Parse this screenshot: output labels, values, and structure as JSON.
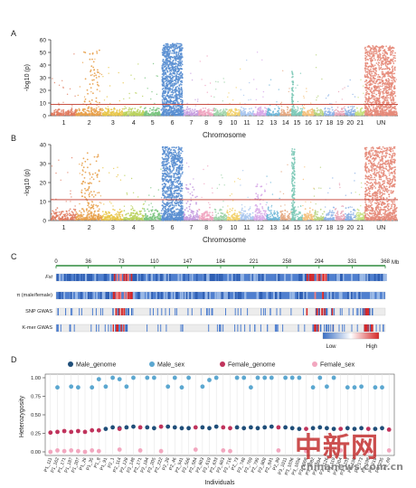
{
  "panels": {
    "A": {
      "letter": "A",
      "ylabel": "-log10 (p)",
      "xlabel": "Chromosome",
      "yticks": [
        0,
        10,
        20,
        30,
        40,
        50,
        60
      ],
      "threshold": 9
    },
    "B": {
      "letter": "B",
      "ylabel": "-log10 (p)",
      "xlabel": "Chromosome",
      "yticks": [
        0,
        10,
        20,
        30,
        40
      ],
      "threshold": 11
    },
    "C": {
      "letter": "C",
      "axis_ticks": [
        "0",
        "36",
        "73",
        "110",
        "147",
        "184",
        "221",
        "258",
        "294",
        "331",
        "368"
      ],
      "axis_unit": "Mb",
      "tracks": [
        "Fst",
        "π (male/female)",
        "SNP GWAS",
        "K-mer GWAS"
      ],
      "legend_low": "Low",
      "legend_high": "High"
    },
    "D": {
      "letter": "D",
      "ylabel": "Heterozygosity",
      "xlabel": "Individuals",
      "yticks": [
        "0.00",
        "0.25",
        "0.50",
        "0.75",
        "1.00"
      ]
    }
  },
  "chromosomes": [
    "1",
    "2",
    "3",
    "4",
    "5",
    "6",
    "7",
    "8",
    "9",
    "10",
    "11",
    "12",
    "13",
    "14",
    "15",
    "16",
    "17",
    "18",
    "19",
    "20",
    "21",
    "UN"
  ],
  "chrom_colors": [
    "#e07a5f",
    "#e8a04a",
    "#e8c547",
    "#b8d15a",
    "#7ac47f",
    "#5a8fd1",
    "#c79fe0",
    "#f0a3c0",
    "#9dd3a8",
    "#f2d16b",
    "#a9c7ee",
    "#d7a8e8",
    "#6fb7d8",
    "#e5a982",
    "#7dc9b7",
    "#f5c07a",
    "#b7d27c",
    "#8fb4e8",
    "#e8a3b6",
    "#88aee3",
    "#c5e07e",
    "#e58b7a"
  ],
  "legend": [
    {
      "label": "Male_genome",
      "color": "#1f4e79"
    },
    {
      "label": "Male_sex",
      "color": "#5ba7d0"
    },
    {
      "label": "Female_genome",
      "color": "#c0335c"
    },
    {
      "label": "Female_sex",
      "color": "#f2a7bf"
    }
  ],
  "chart_data": {
    "type": "scatter",
    "ylabel": "Heterozygosity",
    "xlabel": "Individuals",
    "ylim": [
      0,
      1
    ],
    "categories": [
      "P1_111",
      "P1_162",
      "P1_171",
      "P1_187",
      "P1_207",
      "P1_26",
      "P1_35",
      "P1_8",
      "P1_91",
      "P2_1",
      "P2_114",
      "P2_128",
      "P2_148",
      "P2_171",
      "P2_184",
      "P2_205",
      "P2_222",
      "P2_28",
      "P2_46",
      "P2_541",
      "P2_566",
      "P2_584",
      "P2_603",
      "P2_619",
      "P2_633",
      "P2_663",
      "P2_716",
      "P2_73",
      "P2_748",
      "P2_769",
      "P2_795",
      "P2_808",
      "P2_841",
      "P2_89",
      "P3_1011",
      "P3_1036",
      "P3_1056",
      "P3_1068",
      "P3_1082",
      "P3_1094",
      "P3_1126",
      "P3_119",
      "P3_1204",
      "P3_1233",
      "P3_150",
      "P3_173",
      "P3_198",
      "P3_219",
      "P3_235",
      "P3_69"
    ],
    "series": [
      {
        "name": "Male_genome",
        "values": [
          null,
          null,
          null,
          null,
          null,
          null,
          null,
          null,
          0.31,
          0.33,
          0.32,
          0.33,
          0.34,
          null,
          0.33,
          0.32,
          null,
          0.34,
          0.33,
          0.32,
          0.32,
          null,
          0.33,
          0.32,
          0.34,
          null,
          null,
          0.33,
          0.32,
          0.33,
          0.32,
          0.33,
          0.34,
          null,
          0.33,
          0.32,
          0.31,
          null,
          0.32,
          0.33,
          0.32,
          0.31,
          null,
          0.32,
          0.31,
          0.32,
          null,
          0.31,
          0.32,
          null
        ]
      },
      {
        "name": "Male_sex",
        "values": [
          null,
          0.87,
          null,
          0.88,
          0.87,
          null,
          0.87,
          0.98,
          0.88,
          1.0,
          0.98,
          0.88,
          1.0,
          null,
          1.0,
          1.0,
          null,
          0.88,
          1.0,
          0.87,
          1.0,
          null,
          0.88,
          0.97,
          1.0,
          null,
          null,
          1.0,
          1.0,
          0.87,
          1.0,
          1.0,
          1.0,
          null,
          1.0,
          1.0,
          1.0,
          null,
          0.87,
          1.0,
          0.88,
          1.0,
          null,
          0.87,
          0.87,
          0.88,
          null,
          0.87,
          0.87,
          null
        ]
      },
      {
        "name": "Female_genome",
        "values": [
          0.26,
          0.27,
          0.28,
          0.27,
          0.28,
          0.27,
          0.29,
          0.29,
          null,
          null,
          0.31,
          null,
          null,
          0.33,
          null,
          null,
          0.34,
          null,
          null,
          null,
          null,
          0.33,
          null,
          null,
          null,
          0.33,
          0.32,
          null,
          null,
          null,
          null,
          null,
          null,
          0.33,
          null,
          null,
          null,
          0.31,
          null,
          null,
          null,
          null,
          0.31,
          null,
          null,
          null,
          0.31,
          null,
          null,
          0.3
        ]
      },
      {
        "name": "Female_sex",
        "values": [
          0.0,
          0.02,
          0.01,
          0.02,
          0.01,
          0.0,
          0.02,
          0.01,
          null,
          null,
          0.03,
          null,
          null,
          0.02,
          null,
          null,
          0.01,
          null,
          null,
          null,
          null,
          0.03,
          null,
          null,
          null,
          0.02,
          0.01,
          null,
          null,
          null,
          null,
          null,
          null,
          0.02,
          null,
          null,
          null,
          0.01,
          null,
          null,
          null,
          null,
          0.02,
          null,
          null,
          null,
          0.01,
          null,
          null,
          0.02
        ]
      }
    ]
  },
  "watermark": {
    "text": "中新网",
    "sub": "chinanews.com.cn"
  }
}
